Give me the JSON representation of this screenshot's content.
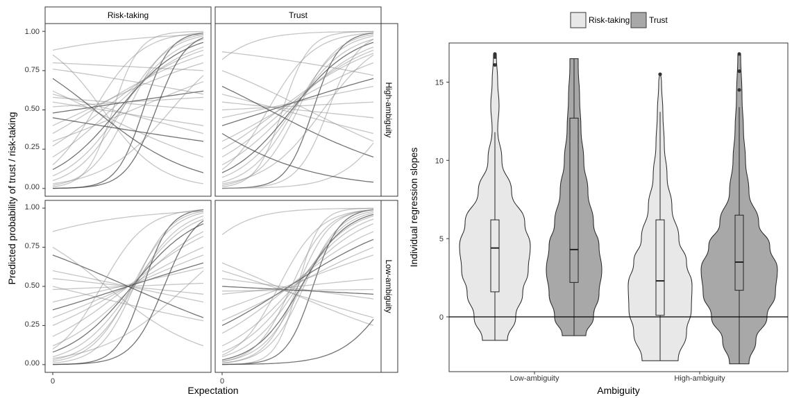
{
  "chart_data": [
    {
      "type": "line",
      "description_hidden": false,
      "xlabel": "Expectation",
      "ylabel": "Predicted probability of trust / risk-taking",
      "column_facets": [
        "Risk-taking",
        "Trust"
      ],
      "row_facets": [
        "High-ambiguity",
        "Low-ambiguity"
      ],
      "x_ticks": [
        "0"
      ],
      "y_ticks": [
        "0.00",
        "0.25",
        "0.50",
        "0.75",
        "1.00"
      ],
      "ylim": [
        0,
        1
      ],
      "grid": false,
      "series_style": "many individual logistic curves per facet, gray semi-transparent",
      "panels": [
        {
          "col": "Risk-taking",
          "row": "High-ambiguity",
          "curves": [
            {
              "y0": 0.0,
              "y1": 0.99
            },
            {
              "y0": 0.01,
              "y1": 1.0
            },
            {
              "y0": 0.02,
              "y1": 0.98
            },
            {
              "y0": 0.05,
              "y1": 0.97
            },
            {
              "y0": 0.08,
              "y1": 0.95
            },
            {
              "y0": 0.12,
              "y1": 0.93
            },
            {
              "y0": 0.2,
              "y1": 0.9
            },
            {
              "y0": 0.27,
              "y1": 0.88
            },
            {
              "y0": 0.35,
              "y1": 0.85
            },
            {
              "y0": 0.4,
              "y1": 0.8
            },
            {
              "y0": 0.48,
              "y1": 0.62
            },
            {
              "y0": 0.52,
              "y1": 0.58
            },
            {
              "y0": 0.55,
              "y1": 0.4
            },
            {
              "y0": 0.6,
              "y1": 0.35
            },
            {
              "y0": 0.62,
              "y1": 0.2
            },
            {
              "y0": 0.7,
              "y1": 0.1
            },
            {
              "y0": 0.76,
              "y1": 0.6
            },
            {
              "y0": 0.8,
              "y1": 0.75
            },
            {
              "y0": 0.85,
              "y1": 0.03
            },
            {
              "y0": 0.88,
              "y1": 0.98
            },
            {
              "y0": 0.45,
              "y1": 0.3
            },
            {
              "y0": 0.3,
              "y1": 0.68
            },
            {
              "y0": 0.15,
              "y1": 0.99
            },
            {
              "y0": 0.03,
              "y1": 0.72
            },
            {
              "y0": 0.58,
              "y1": 0.5
            },
            {
              "y0": 0.0,
              "y1": 0.96
            }
          ]
        },
        {
          "col": "Trust",
          "row": "High-ambiguity",
          "curves": [
            {
              "y0": 0.0,
              "y1": 0.99
            },
            {
              "y0": 0.01,
              "y1": 1.0
            },
            {
              "y0": 0.02,
              "y1": 0.98
            },
            {
              "y0": 0.04,
              "y1": 0.97
            },
            {
              "y0": 0.07,
              "y1": 0.95
            },
            {
              "y0": 0.1,
              "y1": 0.93
            },
            {
              "y0": 0.15,
              "y1": 0.9
            },
            {
              "y0": 0.2,
              "y1": 0.88
            },
            {
              "y0": 0.25,
              "y1": 0.86
            },
            {
              "y0": 0.3,
              "y1": 0.8
            },
            {
              "y0": 0.4,
              "y1": 0.7
            },
            {
              "y0": 0.45,
              "y1": 0.65
            },
            {
              "y0": 0.5,
              "y1": 0.55
            },
            {
              "y0": 0.55,
              "y1": 0.45
            },
            {
              "y0": 0.6,
              "y1": 0.35
            },
            {
              "y0": 0.65,
              "y1": 0.2
            },
            {
              "y0": 0.75,
              "y1": 0.3
            },
            {
              "y0": 0.82,
              "y1": 1.0
            },
            {
              "y0": 0.87,
              "y1": 0.72
            },
            {
              "y0": 0.0,
              "y1": 0.29
            },
            {
              "y0": 0.35,
              "y1": 0.04
            },
            {
              "y0": 0.03,
              "y1": 0.85
            },
            {
              "y0": 0.12,
              "y1": 0.99
            },
            {
              "y0": 0.0,
              "y1": 0.95
            }
          ]
        },
        {
          "col": "Risk-taking",
          "row": "Low-ambiguity",
          "curves": [
            {
              "y0": 0.0,
              "y1": 0.99
            },
            {
              "y0": 0.01,
              "y1": 0.98
            },
            {
              "y0": 0.02,
              "y1": 0.97
            },
            {
              "y0": 0.03,
              "y1": 0.95
            },
            {
              "y0": 0.05,
              "y1": 0.93
            },
            {
              "y0": 0.08,
              "y1": 0.9
            },
            {
              "y0": 0.12,
              "y1": 0.85
            },
            {
              "y0": 0.18,
              "y1": 0.82
            },
            {
              "y0": 0.25,
              "y1": 0.75
            },
            {
              "y0": 0.3,
              "y1": 0.7
            },
            {
              "y0": 0.35,
              "y1": 0.65
            },
            {
              "y0": 0.4,
              "y1": 0.62
            },
            {
              "y0": 0.48,
              "y1": 0.52
            },
            {
              "y0": 0.55,
              "y1": 0.45
            },
            {
              "y0": 0.6,
              "y1": 0.4
            },
            {
              "y0": 0.7,
              "y1": 0.3
            },
            {
              "y0": 0.75,
              "y1": 0.12
            },
            {
              "y0": 0.85,
              "y1": 0.98
            },
            {
              "y0": 0.5,
              "y1": 0.28
            },
            {
              "y0": 0.04,
              "y1": 0.6
            },
            {
              "y0": 0.0,
              "y1": 0.92
            },
            {
              "y0": 0.1,
              "y1": 0.99
            }
          ]
        },
        {
          "col": "Trust",
          "row": "Low-ambiguity",
          "curves": [
            {
              "y0": 0.0,
              "y1": 0.99
            },
            {
              "y0": 0.0,
              "y1": 1.0
            },
            {
              "y0": 0.01,
              "y1": 0.99
            },
            {
              "y0": 0.01,
              "y1": 0.98
            },
            {
              "y0": 0.02,
              "y1": 0.97
            },
            {
              "y0": 0.03,
              "y1": 0.96
            },
            {
              "y0": 0.05,
              "y1": 0.95
            },
            {
              "y0": 0.08,
              "y1": 0.93
            },
            {
              "y0": 0.12,
              "y1": 0.9
            },
            {
              "y0": 0.2,
              "y1": 0.85
            },
            {
              "y0": 0.25,
              "y1": 0.8
            },
            {
              "y0": 0.28,
              "y1": 0.75
            },
            {
              "y0": 0.35,
              "y1": 0.7
            },
            {
              "y0": 0.45,
              "y1": 0.55
            },
            {
              "y0": 0.47,
              "y1": 0.48
            },
            {
              "y0": 0.5,
              "y1": 0.45
            },
            {
              "y0": 0.55,
              "y1": 0.42
            },
            {
              "y0": 0.6,
              "y1": 0.3
            },
            {
              "y0": 0.65,
              "y1": 0.25
            },
            {
              "y0": 0.83,
              "y1": 1.0
            },
            {
              "y0": 0.0,
              "y1": 0.29
            },
            {
              "y0": 0.02,
              "y1": 0.99
            },
            {
              "y0": 0.06,
              "y1": 0.99
            }
          ]
        }
      ]
    },
    {
      "type": "violin",
      "xlabel": "Ambiguity",
      "ylabel": "Individual regression slopes",
      "categories": [
        "Low-ambiguity",
        "High-ambiguity"
      ],
      "legend": {
        "entries": [
          "Risk-taking",
          "Trust"
        ],
        "position": "top"
      },
      "y_ticks": [
        "0",
        "5",
        "10",
        "15"
      ],
      "ylim": [
        -3.5,
        17.5
      ],
      "hline": 0,
      "grid": false,
      "fill_colors": {
        "Risk-taking": "#e8e8e8",
        "Trust": "#a8a8a8"
      },
      "series": [
        {
          "name": "Risk-taking",
          "category": "Low-ambiguity",
          "min": -1.5,
          "max": 16.8,
          "box": {
            "q1": 1.6,
            "median": 4.4,
            "q3": 6.2,
            "lower_whisker": -1.5,
            "upper_whisker": 11.8
          },
          "outliers": [
            16.8,
            16.6,
            16.1
          ]
        },
        {
          "name": "Trust",
          "category": "Low-ambiguity",
          "min": -1.2,
          "max": 16.5,
          "box": {
            "q1": 2.2,
            "median": 4.3,
            "q3": 12.7,
            "lower_whisker": -1.2,
            "upper_whisker": 16.5
          },
          "outliers": []
        },
        {
          "name": "Risk-taking",
          "category": "High-ambiguity",
          "min": -2.8,
          "max": 15.5,
          "box": {
            "q1": 0.1,
            "median": 2.3,
            "q3": 6.2,
            "lower_whisker": -2.8,
            "upper_whisker": 13.1
          },
          "outliers": [
            15.5
          ]
        },
        {
          "name": "Trust",
          "category": "High-ambiguity",
          "min": -3.0,
          "max": 16.8,
          "box": {
            "q1": 1.7,
            "median": 3.5,
            "q3": 6.5,
            "lower_whisker": -3.0,
            "upper_whisker": 13.4
          },
          "outliers": [
            16.8,
            15.7,
            14.5
          ]
        }
      ]
    }
  ]
}
